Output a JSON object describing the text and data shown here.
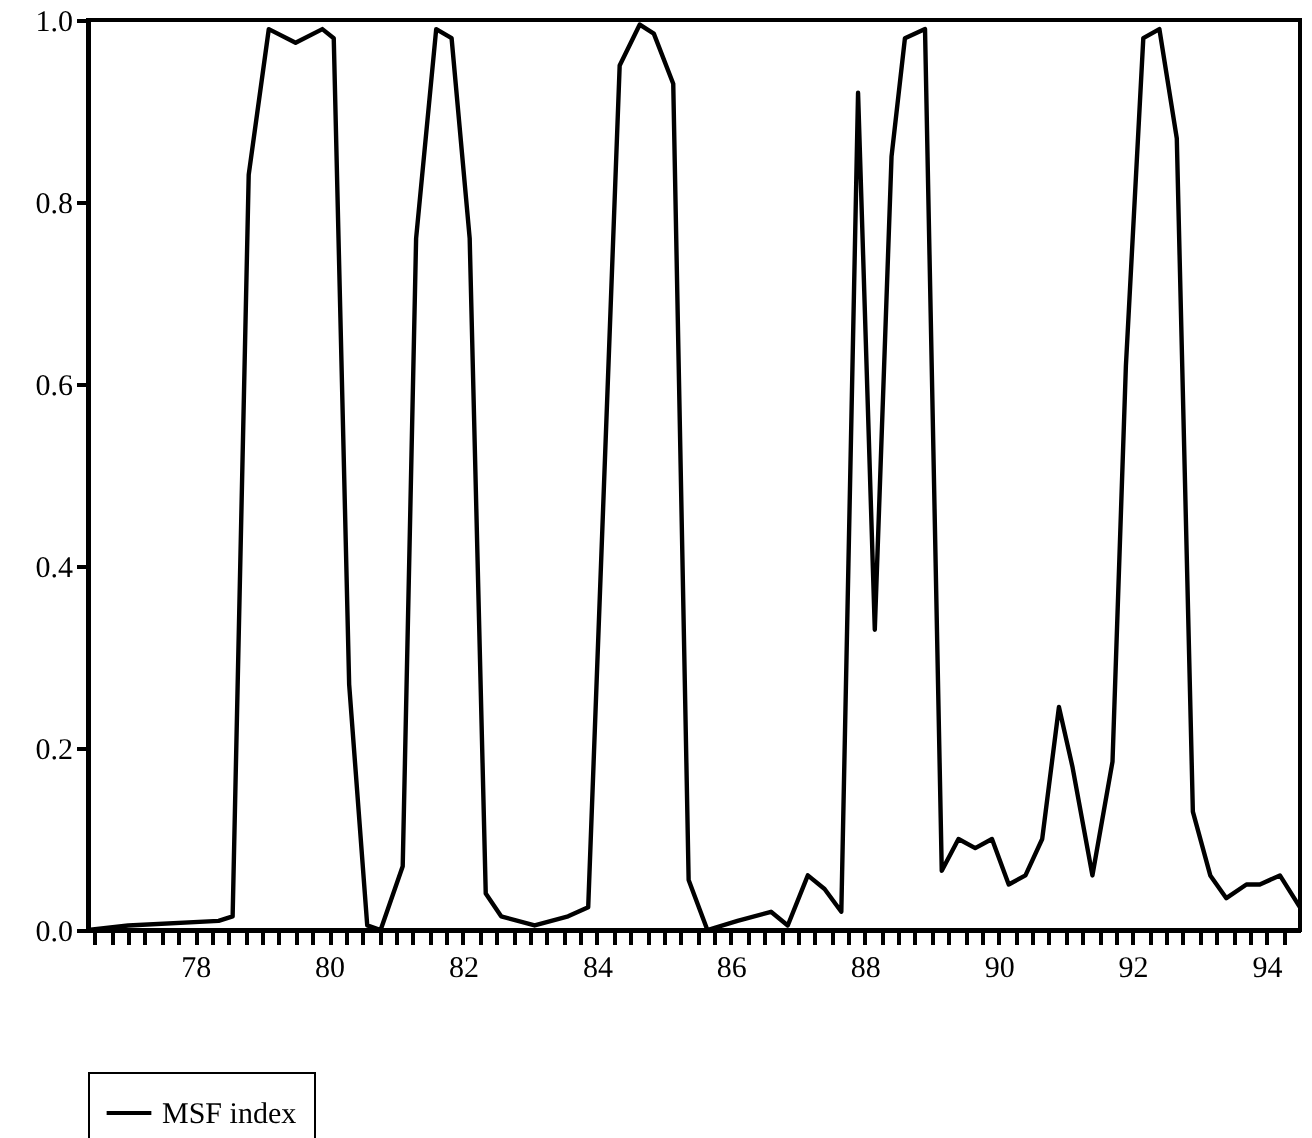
{
  "chart_data": {
    "type": "line",
    "x": [
      76.4,
      77.0,
      78.35,
      78.56,
      78.8,
      79.1,
      79.5,
      79.9,
      80.07,
      80.3,
      80.57,
      80.77,
      81.1,
      81.3,
      81.6,
      81.83,
      82.1,
      82.34,
      82.57,
      83.07,
      83.57,
      83.87,
      84.34,
      84.64,
      84.85,
      85.14,
      85.37,
      85.65,
      86.1,
      86.6,
      86.85,
      87.15,
      87.4,
      87.65,
      87.9,
      88.15,
      88.4,
      88.6,
      88.9,
      89.15,
      89.4,
      89.65,
      89.9,
      90.15,
      90.4,
      90.65,
      90.9,
      91.1,
      91.4,
      91.7,
      91.9,
      92.16,
      92.4,
      92.66,
      92.9,
      93.16,
      93.4,
      93.7,
      93.9,
      94.2,
      94.5
    ],
    "series": [
      {
        "name": "MSF index",
        "color": "#000000",
        "values": [
          0,
          0.005,
          0.01,
          0.015,
          0.83,
          0.99,
          0.975,
          0.99,
          0.98,
          0.27,
          0.005,
          0,
          0.07,
          0.76,
          0.99,
          0.98,
          0.76,
          0.04,
          0.015,
          0.005,
          0.015,
          0.025,
          0.95,
          0.995,
          0.985,
          0.93,
          0.055,
          0,
          0.01,
          0.02,
          0.005,
          0.06,
          0.045,
          0.02,
          0.92,
          0.33,
          0.85,
          0.98,
          0.99,
          0.065,
          0.1,
          0.09,
          0.1,
          0.05,
          0.06,
          0.1,
          0.245,
          0.18,
          0.06,
          0.185,
          0.62,
          0.98,
          0.99,
          0.87,
          0.13,
          0.06,
          0.035,
          0.05,
          0.05,
          0.06,
          0.025
        ]
      }
    ],
    "xlim": [
      76.4,
      94.5
    ],
    "xticks": [
      {
        "value": 76.5,
        "label": null
      },
      {
        "value": 76.75,
        "label": null
      },
      {
        "value": 77,
        "label": null
      },
      {
        "value": 77.25,
        "label": null
      },
      {
        "value": 77.5,
        "label": null
      },
      {
        "value": 77.75,
        "label": null
      },
      78,
      {
        "value": 78.25,
        "label": null
      },
      {
        "value": 78.5,
        "label": null
      },
      {
        "value": 78.75,
        "label": null
      },
      {
        "value": 79,
        "label": null
      },
      {
        "value": 79.25,
        "label": null
      },
      {
        "value": 79.5,
        "label": null
      },
      {
        "value": 79.75,
        "label": null
      },
      80,
      {
        "value": 80.25,
        "label": null
      },
      {
        "value": 80.5,
        "label": null
      },
      {
        "value": 80.75,
        "label": null
      },
      {
        "value": 81,
        "label": null
      },
      {
        "value": 81.25,
        "label": null
      },
      {
        "value": 81.5,
        "label": null
      },
      {
        "value": 81.75,
        "label": null
      },
      82,
      {
        "value": 82.25,
        "label": null
      },
      {
        "value": 82.5,
        "label": null
      },
      {
        "value": 82.75,
        "label": null
      },
      {
        "value": 83,
        "label": null
      },
      {
        "value": 83.25,
        "label": null
      },
      {
        "value": 83.5,
        "label": null
      },
      {
        "value": 83.75,
        "label": null
      },
      84,
      {
        "value": 84.25,
        "label": null
      },
      {
        "value": 84.5,
        "label": null
      },
      {
        "value": 84.75,
        "label": null
      },
      {
        "value": 85,
        "label": null
      },
      {
        "value": 85.25,
        "label": null
      },
      {
        "value": 85.5,
        "label": null
      },
      {
        "value": 85.75,
        "label": null
      },
      86,
      {
        "value": 86.25,
        "label": null
      },
      {
        "value": 86.5,
        "label": null
      },
      {
        "value": 86.75,
        "label": null
      },
      {
        "value": 87,
        "label": null
      },
      {
        "value": 87.25,
        "label": null
      },
      {
        "value": 87.5,
        "label": null
      },
      {
        "value": 87.75,
        "label": null
      },
      88,
      {
        "value": 88.25,
        "label": null
      },
      {
        "value": 88.5,
        "label": null
      },
      {
        "value": 88.75,
        "label": null
      },
      {
        "value": 89,
        "label": null
      },
      {
        "value": 89.25,
        "label": null
      },
      {
        "value": 89.5,
        "label": null
      },
      {
        "value": 89.75,
        "label": null
      },
      90,
      {
        "value": 90.25,
        "label": null
      },
      {
        "value": 90.5,
        "label": null
      },
      {
        "value": 90.75,
        "label": null
      },
      {
        "value": 91,
        "label": null
      },
      {
        "value": 91.25,
        "label": null
      },
      {
        "value": 91.5,
        "label": null
      },
      {
        "value": 91.75,
        "label": null
      },
      92,
      {
        "value": 92.25,
        "label": null
      },
      {
        "value": 92.5,
        "label": null
      },
      {
        "value": 92.75,
        "label": null
      },
      {
        "value": 93,
        "label": null
      },
      {
        "value": 93.25,
        "label": null
      },
      {
        "value": 93.5,
        "label": null
      },
      {
        "value": 93.75,
        "label": null
      },
      94,
      {
        "value": 94.25,
        "label": null
      }
    ],
    "ylim": [
      0,
      1
    ],
    "yticks": [
      {
        "value": 0,
        "label": "0.0"
      },
      {
        "value": 0.2,
        "label": "0.2"
      },
      {
        "value": 0.4,
        "label": "0.4"
      },
      {
        "value": 0.6,
        "label": "0.6"
      },
      {
        "value": 0.8,
        "label": "0.8"
      },
      {
        "value": 1,
        "label": "1.0"
      }
    ],
    "legend": "bottom",
    "marker": "none",
    "line_style": "solid",
    "grid": false
  }
}
